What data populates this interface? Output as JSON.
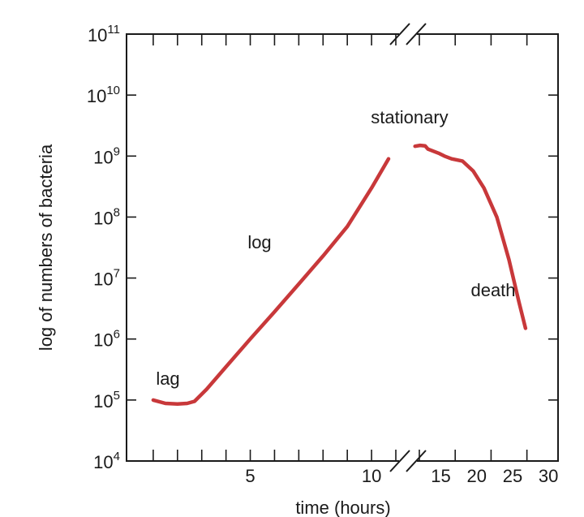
{
  "chart_data": {
    "type": "line",
    "title": "",
    "xlabel": "time (hours)",
    "ylabel": "log of numbers of bacteria",
    "y_scale": "log",
    "ylim": [
      10000,
      100000000000
    ],
    "y_ticks": [
      {
        "base": "10",
        "exp": "4",
        "value": 10000
      },
      {
        "base": "10",
        "exp": "5",
        "value": 100000
      },
      {
        "base": "10",
        "exp": "6",
        "value": 1000000
      },
      {
        "base": "10",
        "exp": "7",
        "value": 10000000
      },
      {
        "base": "10",
        "exp": "8",
        "value": 100000000
      },
      {
        "base": "10",
        "exp": "9",
        "value": 1000000000
      },
      {
        "base": "10",
        "exp": "10",
        "value": 10000000000
      },
      {
        "base": "10",
        "exp": "11",
        "value": 100000000000
      }
    ],
    "x_axis_break": true,
    "x_segments": [
      {
        "range": [
          0,
          11
        ],
        "minor_step": 1,
        "labels": [
          5,
          10
        ]
      },
      {
        "range": [
          12,
          31
        ],
        "minor_step": 5,
        "labels": [
          15,
          20,
          25,
          30
        ]
      }
    ],
    "series": [
      {
        "color": "#c8383a",
        "points": [
          [
            1,
            100000
          ],
          [
            1.5,
            88000
          ],
          [
            2,
            86000
          ],
          [
            2.4,
            88000
          ],
          [
            2.7,
            95000
          ],
          [
            3.2,
            150000
          ],
          [
            4,
            350000
          ],
          [
            5,
            1000000
          ],
          [
            6,
            2800000
          ],
          [
            7,
            8000000
          ],
          [
            8,
            23000000
          ],
          [
            9,
            70000000
          ],
          [
            10,
            300000000
          ],
          [
            10.7,
            900000000
          ],
          [
            11.4,
            1450000000
          ],
          [
            12.1,
            1500000000
          ],
          [
            12.8,
            1470000000
          ],
          [
            13.2,
            1300000000
          ],
          [
            14.8,
            1100000000
          ],
          [
            15.5,
            1000000000
          ],
          [
            16.5,
            900000000
          ],
          [
            18,
            830000000
          ],
          [
            19.5,
            570000000
          ],
          [
            21,
            300000000
          ],
          [
            22.8,
            100000000
          ],
          [
            24.5,
            20000000
          ],
          [
            25.9,
            4000000
          ],
          [
            26.8,
            1500000
          ]
        ]
      }
    ],
    "annotations": [
      "lag",
      "log",
      "stationary",
      "death"
    ]
  }
}
